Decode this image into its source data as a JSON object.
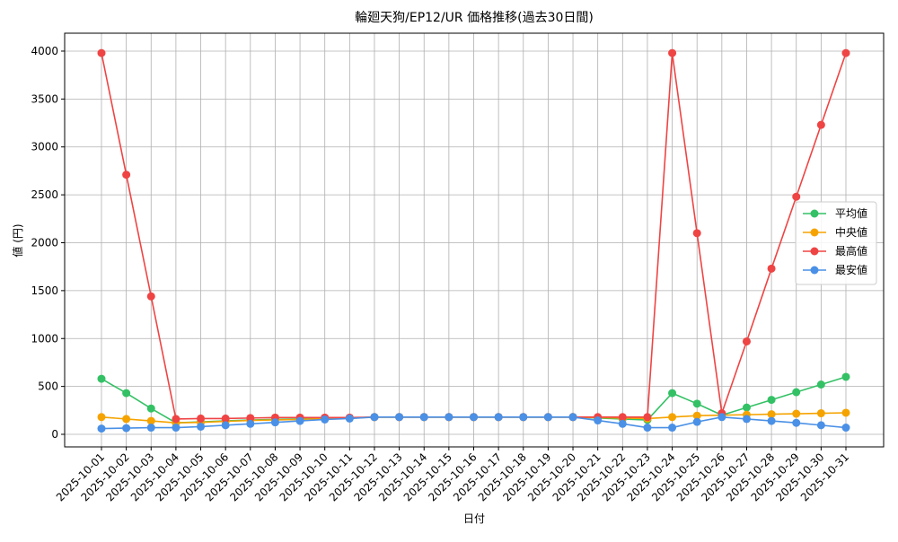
{
  "chart_data": {
    "type": "line",
    "title": "輪廻天狗/EP12/UR 価格推移(過去30日間)",
    "x_label": "日付",
    "y_label": "値 (円)",
    "categories": [
      "2025-10-01",
      "2025-10-02",
      "2025-10-03",
      "2025-10-04",
      "2025-10-05",
      "2025-10-06",
      "2025-10-07",
      "2025-10-08",
      "2025-10-09",
      "2025-10-10",
      "2025-10-11",
      "2025-10-12",
      "2025-10-13",
      "2025-10-14",
      "2025-10-15",
      "2025-10-16",
      "2025-10-17",
      "2025-10-18",
      "2025-10-19",
      "2025-10-20",
      "2025-10-21",
      "2025-10-22",
      "2025-10-23",
      "2025-10-24",
      "2025-10-25",
      "2025-10-26",
      "2025-10-27",
      "2025-10-28",
      "2025-10-29",
      "2025-10-30",
      "2025-10-31"
    ],
    "series": [
      {
        "name": "平均値",
        "color": "#34c165",
        "values": [
          580,
          430,
          270,
          120,
          130,
          140,
          150,
          155,
          160,
          165,
          170,
          180,
          180,
          180,
          180,
          180,
          180,
          180,
          180,
          180,
          170,
          160,
          150,
          430,
          320,
          200,
          280,
          360,
          440,
          520,
          600
        ]
      },
      {
        "name": "中央値",
        "color": "#f5a300",
        "values": [
          180,
          160,
          140,
          120,
          125,
          135,
          145,
          150,
          155,
          165,
          170,
          180,
          180,
          180,
          180,
          180,
          180,
          180,
          180,
          180,
          175,
          170,
          165,
          180,
          195,
          200,
          205,
          210,
          215,
          220,
          225
        ]
      },
      {
        "name": "最高値",
        "color": "#ef4444",
        "values": [
          3980,
          2710,
          1440,
          160,
          165,
          165,
          170,
          175,
          175,
          175,
          175,
          180,
          180,
          180,
          180,
          180,
          180,
          180,
          180,
          180,
          180,
          180,
          180,
          3980,
          2100,
          220,
          970,
          1730,
          2480,
          3230,
          3980
        ]
      },
      {
        "name": "最安値",
        "color": "#4a90e6",
        "values": [
          60,
          65,
          70,
          70,
          80,
          95,
          110,
          125,
          140,
          155,
          165,
          180,
          180,
          180,
          180,
          180,
          180,
          180,
          180,
          180,
          145,
          110,
          70,
          70,
          130,
          180,
          160,
          140,
          120,
          95,
          70
        ]
      }
    ],
    "ylim": [
      -131,
      4187
    ],
    "yticks": [
      0,
      500,
      1000,
      1500,
      2000,
      2500,
      3000,
      3500,
      4000
    ],
    "grid": true,
    "legend": "right"
  }
}
